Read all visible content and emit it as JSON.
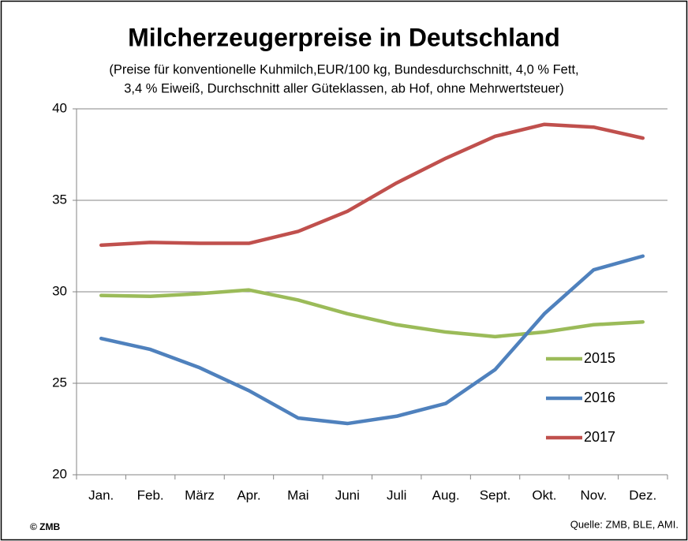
{
  "chart_data": {
    "type": "line",
    "title": "Milcherzeugerpreise in Deutschland",
    "subtitle": [
      "(Preise für konventionelle Kuhmilch,EUR/100 kg, Bundesdurchschnitt, 4,0 % Fett,",
      "3,4 % Eiweiß, Durchschnitt aller Güteklassen, ab Hof, ohne Mehrwertsteuer)"
    ],
    "categories": [
      "Jan.",
      "Feb.",
      "März",
      "Apr.",
      "Mai",
      "Juni",
      "Juli",
      "Aug.",
      "Sept.",
      "Okt.",
      "Nov.",
      "Dez."
    ],
    "series": [
      {
        "name": "2015",
        "color": "#9bbb59",
        "values": [
          29.8,
          29.75,
          29.9,
          30.1,
          29.55,
          28.8,
          28.2,
          27.8,
          27.55,
          27.8,
          28.2,
          28.35
        ]
      },
      {
        "name": "2016",
        "color": "#4f81bd",
        "values": [
          27.45,
          26.85,
          25.85,
          24.6,
          23.1,
          22.8,
          23.2,
          23.9,
          25.75,
          28.8,
          31.2,
          31.95
        ]
      },
      {
        "name": "2017",
        "color": "#c0504d",
        "values": [
          32.55,
          32.7,
          32.65,
          32.65,
          33.3,
          34.4,
          35.95,
          37.3,
          38.5,
          39.15,
          39.0,
          38.4
        ]
      }
    ],
    "ylim": [
      20,
      40
    ],
    "yticks": [
      20,
      25,
      30,
      35,
      40
    ],
    "grid": true,
    "legend": "right",
    "copyright": "© ZMB",
    "source": "Quelle: ZMB, BLE, AMI."
  }
}
